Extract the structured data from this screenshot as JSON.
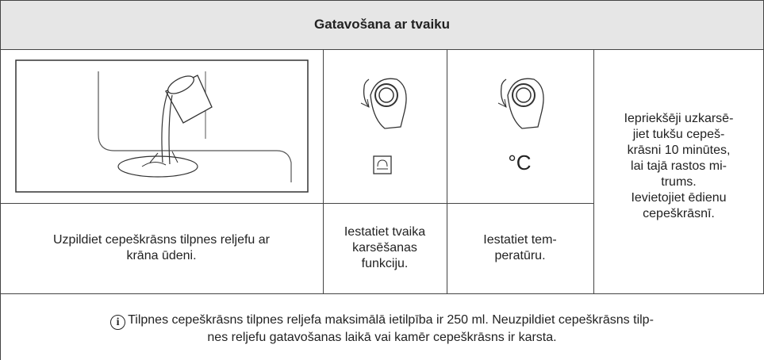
{
  "table": {
    "title": "Gatavošana ar tvaiku",
    "temperature_symbol": "°C",
    "captions": [
      [
        "Uzpildiet cepeškrāsns tilpnes reljefu ar",
        "krāna ūdeni."
      ],
      [
        "Iestatiet tvaika",
        "karsēšanas",
        "funkciju."
      ],
      [
        "Iestatiet tem-",
        "peratūru."
      ]
    ],
    "side_text": [
      [
        "Iepriekšēji uzkarsē-",
        "jiet tukšu cepeš-",
        "krāsni 10 minūtes,",
        "lai tajā rastos mi-",
        "trums."
      ],
      [
        "Ievietojiet ēdienu",
        "cepeškrāsnī."
      ]
    ],
    "note": {
      "icon": "i",
      "lines": [
        "Tilpnes cepeškrāsns tilpnes reljefa maksimālā ietilpība ir 250 ml. Neuzpildiet cepeškrāsns tilp-",
        "nes reljefu gatavošanas laikā vai kamēr cepeškrāsns ir karsta."
      ]
    }
  }
}
